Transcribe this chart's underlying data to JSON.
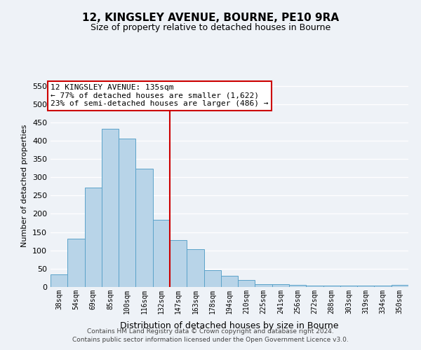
{
  "title": "12, KINGSLEY AVENUE, BOURNE, PE10 9RA",
  "subtitle": "Size of property relative to detached houses in Bourne",
  "xlabel": "Distribution of detached houses by size in Bourne",
  "ylabel": "Number of detached properties",
  "categories": [
    "38sqm",
    "54sqm",
    "69sqm",
    "85sqm",
    "100sqm",
    "116sqm",
    "132sqm",
    "147sqm",
    "163sqm",
    "178sqm",
    "194sqm",
    "210sqm",
    "225sqm",
    "241sqm",
    "256sqm",
    "272sqm",
    "288sqm",
    "303sqm",
    "319sqm",
    "334sqm",
    "350sqm"
  ],
  "values": [
    35,
    133,
    272,
    432,
    405,
    323,
    183,
    128,
    103,
    46,
    30,
    20,
    8,
    8,
    5,
    3,
    3,
    3,
    3,
    3,
    5
  ],
  "bar_color": "#b8d4e8",
  "bar_edge_color": "#5ba3c9",
  "vline_x_index": 6,
  "vline_color": "#cc0000",
  "annotation_box_text": "12 KINGSLEY AVENUE: 135sqm\n← 77% of detached houses are smaller (1,622)\n23% of semi-detached houses are larger (486) →",
  "annotation_box_color": "#ffffff",
  "annotation_box_edge_color": "#cc0000",
  "ylim": [
    0,
    555
  ],
  "yticks": [
    0,
    50,
    100,
    150,
    200,
    250,
    300,
    350,
    400,
    450,
    500,
    550
  ],
  "footer_line1": "Contains HM Land Registry data © Crown copyright and database right 2024.",
  "footer_line2": "Contains public sector information licensed under the Open Government Licence v3.0.",
  "background_color": "#eef2f7",
  "grid_color": "#ffffff"
}
